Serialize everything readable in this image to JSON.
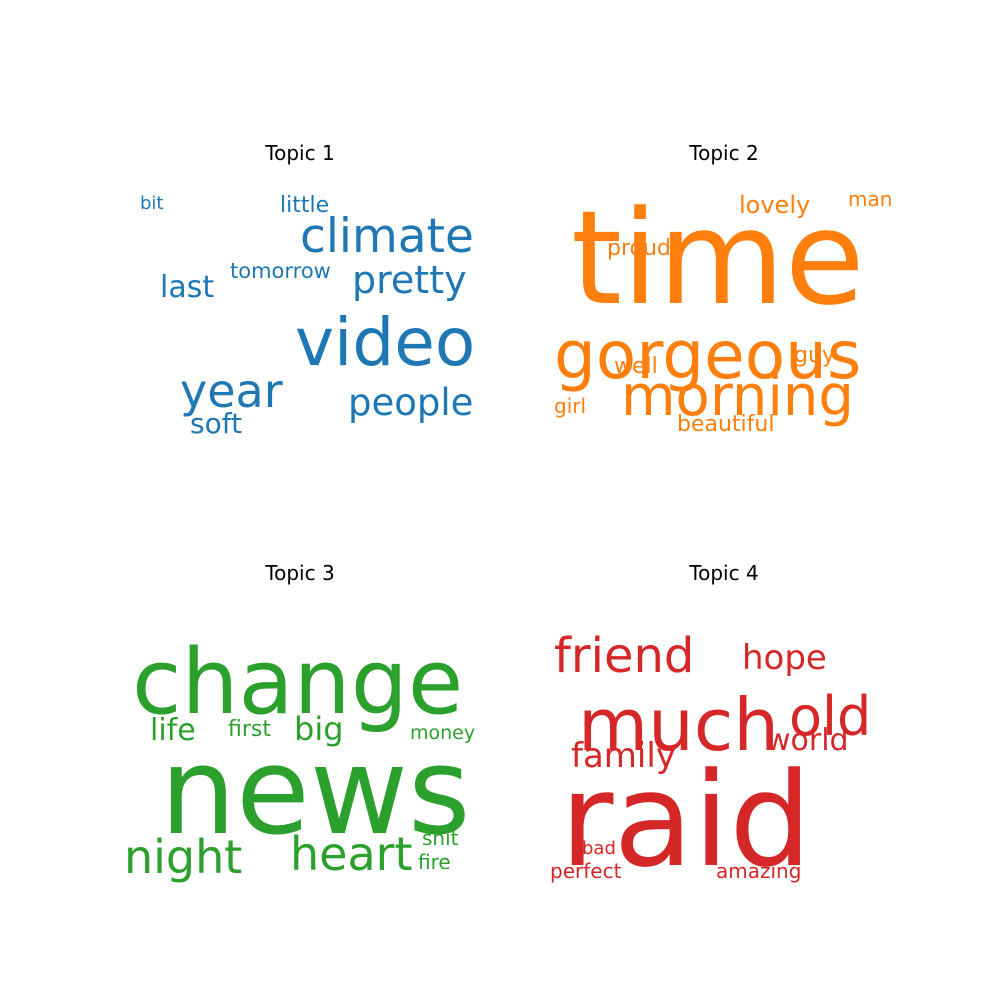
{
  "chart_data": [
    {
      "type": "wordcloud",
      "title": "Topic 1",
      "color": "#1f77b4",
      "words": [
        "video",
        "climate",
        "people",
        "year",
        "pretty",
        "last",
        "soft",
        "tomorrow",
        "little",
        "bit"
      ]
    },
    {
      "type": "wordcloud",
      "title": "Topic 2",
      "color": "#ff7f0e",
      "words": [
        "time",
        "gorgeous",
        "morning",
        "lovely",
        "proud",
        "man",
        "well",
        "guy",
        "beautiful",
        "girl"
      ]
    },
    {
      "type": "wordcloud",
      "title": "Topic 3",
      "color": "#2ca02c",
      "words": [
        "news",
        "change",
        "night",
        "heart",
        "big",
        "life",
        "first",
        "money",
        "shit",
        "fire"
      ]
    },
    {
      "type": "wordcloud",
      "title": "Topic 4",
      "color": "#d62728",
      "words": [
        "raid",
        "much",
        "friend",
        "old",
        "hope",
        "family",
        "world",
        "amazing",
        "perfect",
        "bad"
      ]
    }
  ]
}
